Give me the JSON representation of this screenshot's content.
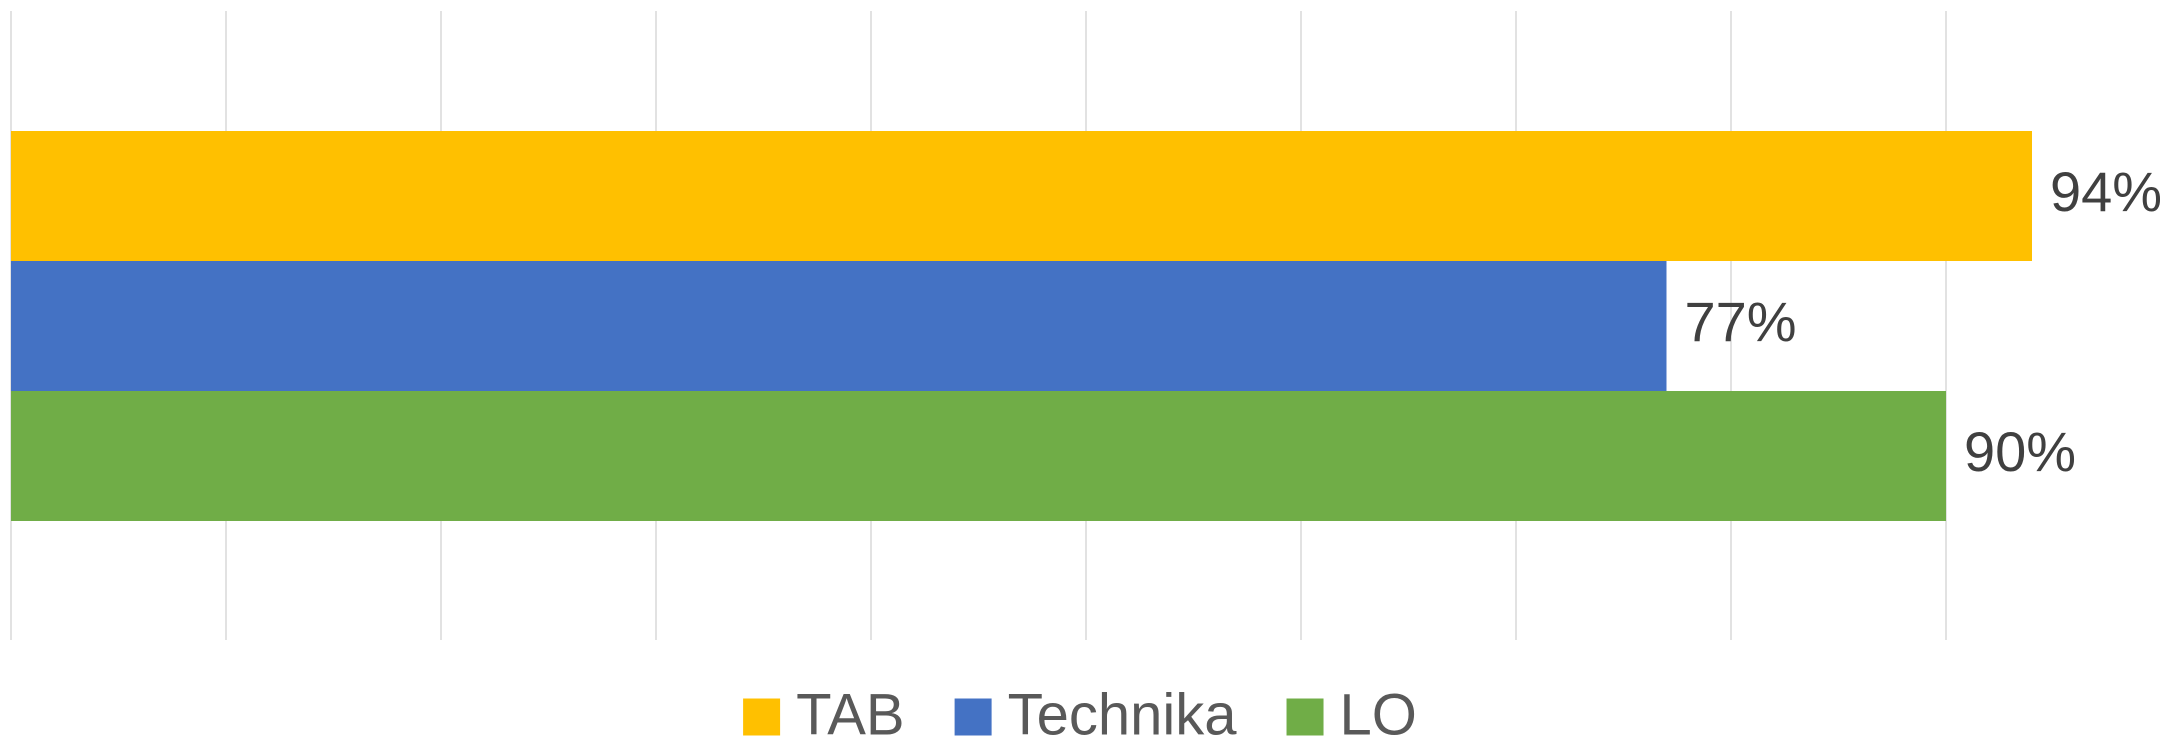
{
  "chart_data": {
    "type": "hbar",
    "categories": [
      null
    ],
    "series": [
      {
        "name": "TAB",
        "color": "#ffc000",
        "values": [
          94
        ],
        "value_labels": [
          "94%"
        ]
      },
      {
        "name": "Technika",
        "color": "#4472c4",
        "values": [
          77
        ],
        "value_labels": [
          "77%"
        ]
      },
      {
        "name": "LO",
        "color": "#70ad47",
        "values": [
          90
        ],
        "value_labels": [
          "90%"
        ]
      }
    ],
    "xlim": [
      0,
      100
    ],
    "xticks": [
      0,
      10,
      20,
      30,
      40,
      50,
      60,
      70,
      80,
      90
    ],
    "grid": true,
    "legend": "bottom"
  }
}
